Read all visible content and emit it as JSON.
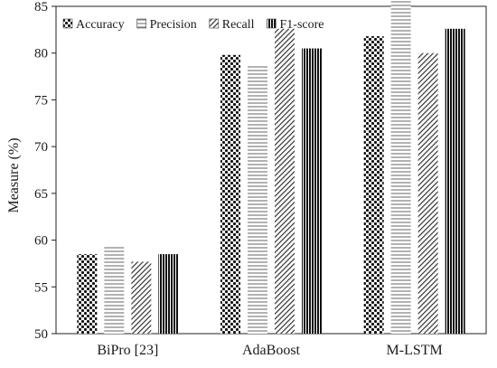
{
  "chart_data": {
    "type": "bar",
    "title": "",
    "xlabel": "",
    "ylabel": "Measure (%)",
    "ylim": [
      50,
      85
    ],
    "yticks": [
      50,
      55,
      60,
      65,
      70,
      75,
      80,
      85
    ],
    "grid": false,
    "legend_position": "top-left",
    "categories": [
      "BiPro [23]",
      "AdaBoost",
      "M-LSTM"
    ],
    "series": [
      {
        "name": "Accuracy",
        "pattern": "dots",
        "values": [
          58.5,
          79.8,
          81.8
        ]
      },
      {
        "name": "Precision",
        "pattern": "light-horizontal-lines",
        "values": [
          59.3,
          78.8,
          85.6
        ]
      },
      {
        "name": "Recall",
        "pattern": "diagonal-stripes",
        "values": [
          57.7,
          82.6,
          80.0
        ]
      },
      {
        "name": "F1-score",
        "pattern": "vertical-lines",
        "values": [
          58.5,
          80.5,
          82.6
        ]
      }
    ]
  }
}
